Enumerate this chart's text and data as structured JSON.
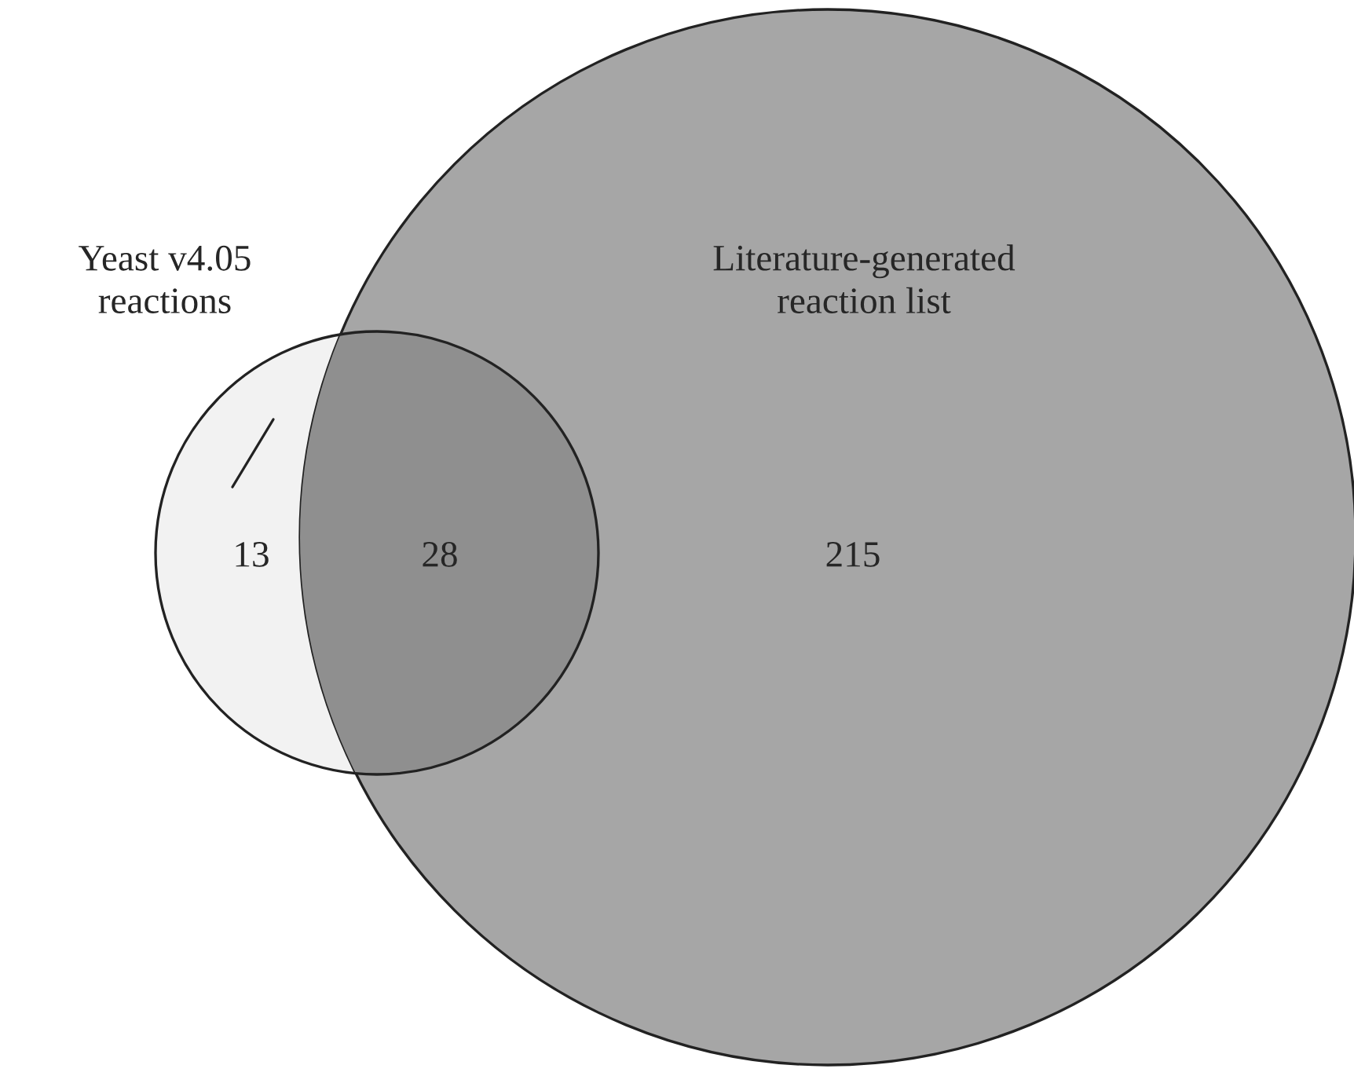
{
  "chart_data": {
    "type": "other",
    "values": [
      13,
      28,
      215
    ],
    "colors": [
      "#f2f2f2",
      "#8f8f8f",
      "#a6a6a6"
    ],
    "data_labels": true,
    "annotations": [
      "Yeast v4.05\nreactions",
      "Literature-generated\nreaction list"
    ]
  }
}
